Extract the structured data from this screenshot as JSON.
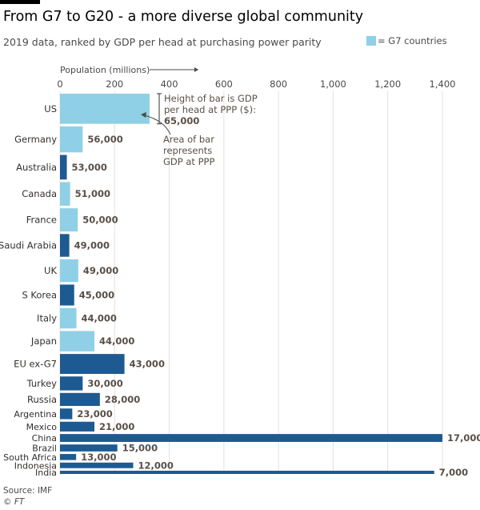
{
  "title": "From G7 to G20 - a more diverse global community",
  "subtitle": "2019 data, ranked by GDP per head at purchasing power parity",
  "legend": {
    "label": "= G7 countries",
    "g7_color": "#8fd0e6",
    "other_color": "#1d5a91"
  },
  "source": "Source: IMF",
  "credit": "© FT",
  "chart_data": {
    "type": "bar",
    "title": "From G7 to G20 - a more diverse global community",
    "xlabel": "Population (millions)",
    "xlim": [
      0,
      1400
    ],
    "x_ticks": [
      0,
      200,
      400,
      600,
      800,
      1000,
      1200,
      1400
    ],
    "x_tick_labels": [
      "0",
      "200",
      "400",
      "600",
      "800",
      "1,000",
      "1,200",
      "1,400"
    ],
    "value_label": "GDP per head at PPP ($)",
    "annotations": {
      "height": "Height of bar is GDP per head at PPP ($):",
      "height_value": "65,000",
      "area": "Area of bar represents GDP at PPP"
    },
    "series": [
      {
        "name": "US",
        "population": 328,
        "gdp_per_head": 65000,
        "label": "65,000",
        "g7": true,
        "show_label": false
      },
      {
        "name": "Germany",
        "population": 83,
        "gdp_per_head": 56000,
        "label": "56,000",
        "g7": true,
        "show_label": true
      },
      {
        "name": "Australia",
        "population": 25,
        "gdp_per_head": 53000,
        "label": "53,000",
        "g7": false,
        "show_label": true
      },
      {
        "name": "Canada",
        "population": 37,
        "gdp_per_head": 51000,
        "label": "51,000",
        "g7": true,
        "show_label": true
      },
      {
        "name": "France",
        "population": 65,
        "gdp_per_head": 50000,
        "label": "50,000",
        "g7": true,
        "show_label": true
      },
      {
        "name": "Saudi Arabia",
        "population": 34,
        "gdp_per_head": 49000,
        "label": "49,000",
        "g7": false,
        "show_label": true
      },
      {
        "name": "UK",
        "population": 67,
        "gdp_per_head": 49000,
        "label": "49,000",
        "g7": true,
        "show_label": true
      },
      {
        "name": "S Korea",
        "population": 52,
        "gdp_per_head": 45000,
        "label": "45,000",
        "g7": false,
        "show_label": true
      },
      {
        "name": "Italy",
        "population": 60,
        "gdp_per_head": 44000,
        "label": "44,000",
        "g7": true,
        "show_label": true
      },
      {
        "name": "Japan",
        "population": 126,
        "gdp_per_head": 44000,
        "label": "44,000",
        "g7": true,
        "show_label": true
      },
      {
        "name": "EU ex-G7",
        "population": 236,
        "gdp_per_head": 43000,
        "label": "43,000",
        "g7": false,
        "show_label": true
      },
      {
        "name": "Turkey",
        "population": 83,
        "gdp_per_head": 30000,
        "label": "30,000",
        "g7": false,
        "show_label": true
      },
      {
        "name": "Russia",
        "population": 146,
        "gdp_per_head": 28000,
        "label": "28,000",
        "g7": false,
        "show_label": true
      },
      {
        "name": "Argentina",
        "population": 45,
        "gdp_per_head": 23000,
        "label": "23,000",
        "g7": false,
        "show_label": true
      },
      {
        "name": "Mexico",
        "population": 126,
        "gdp_per_head": 21000,
        "label": "21,000",
        "g7": false,
        "show_label": true
      },
      {
        "name": "China",
        "population": 1400,
        "gdp_per_head": 17000,
        "label": "17,000",
        "g7": false,
        "show_label": true
      },
      {
        "name": "Brazil",
        "population": 210,
        "gdp_per_head": 15000,
        "label": "15,000",
        "g7": false,
        "show_label": true
      },
      {
        "name": "South Africa",
        "population": 59,
        "gdp_per_head": 13000,
        "label": "13,000",
        "g7": false,
        "show_label": true
      },
      {
        "name": "Indonesia",
        "population": 268,
        "gdp_per_head": 12000,
        "label": "12,000",
        "g7": false,
        "show_label": true
      },
      {
        "name": "India",
        "population": 1370,
        "gdp_per_head": 7000,
        "label": "7,000",
        "g7": false,
        "show_label": true
      }
    ]
  }
}
